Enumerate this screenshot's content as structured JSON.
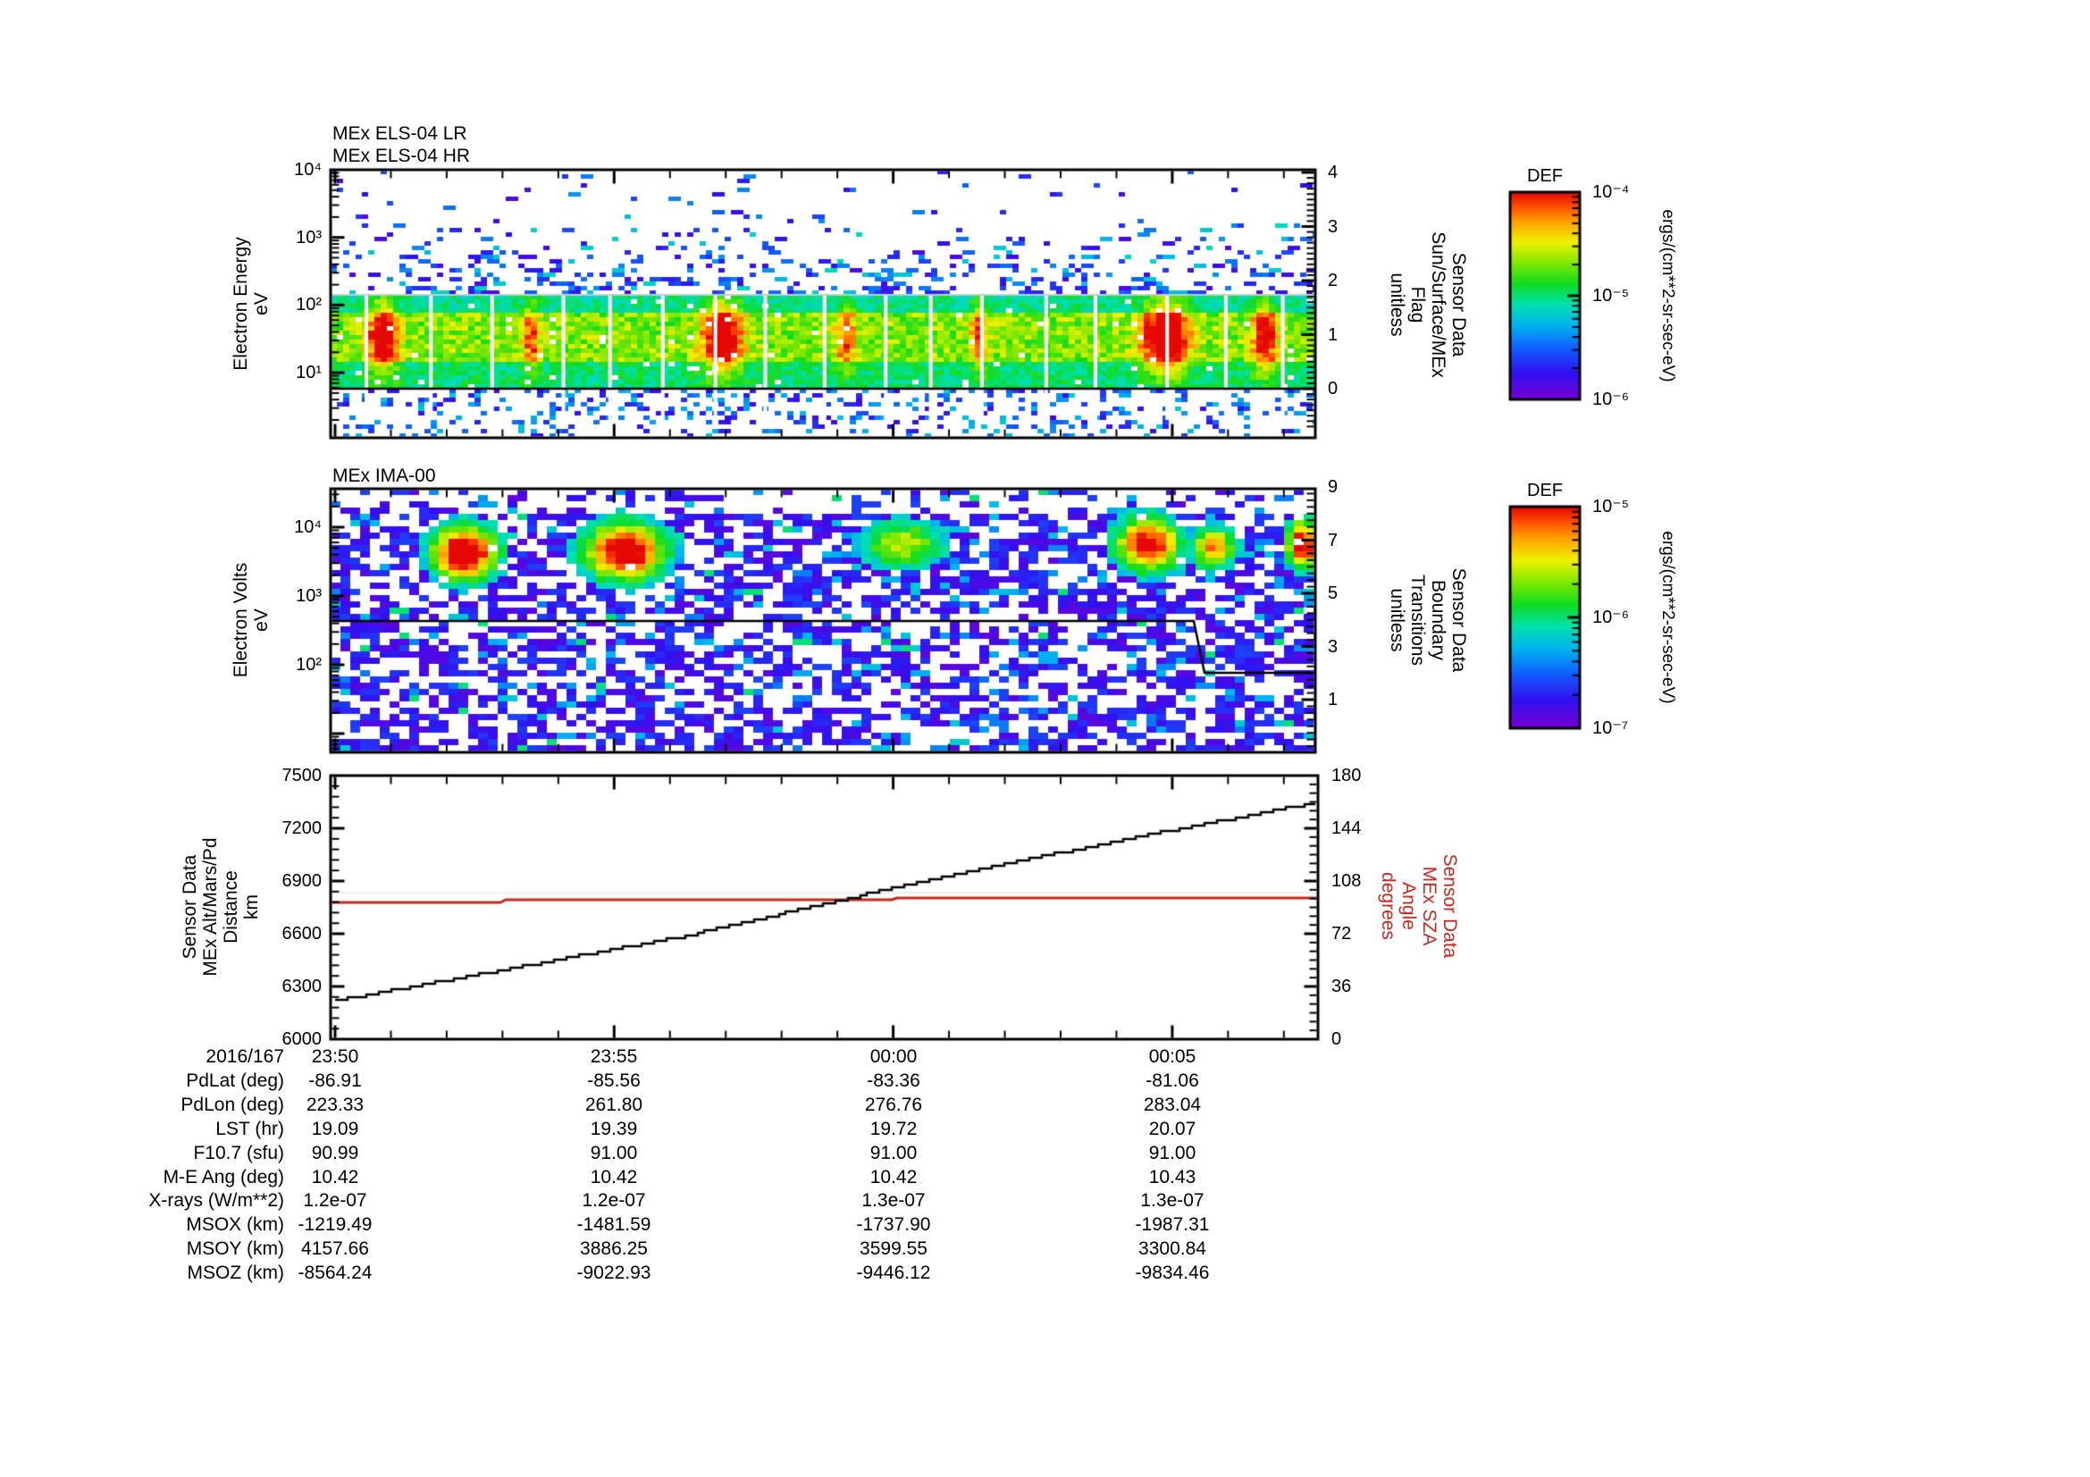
{
  "figure": {
    "background": "#ffffff",
    "accent_red": "#c4281e"
  },
  "panels": {
    "els": {
      "title_lr": "MEx ELS-04 LR",
      "title_hr": "MEx ELS-04 HR",
      "ylabel": "Electron Energy\neV",
      "yticks": [
        "10⁴",
        "10³",
        "10²",
        "10¹"
      ],
      "right_label": "Sensor Data\nSun/Surface/MEx\nFlag\nunitless",
      "right_ticks": [
        "4",
        "3",
        "2",
        "1",
        "0"
      ]
    },
    "ima": {
      "title": "MEx IMA-00",
      "ylabel": "Electron Volts\neV",
      "yticks": [
        "10⁴",
        "10³",
        "10²"
      ],
      "right_label": "Sensor Data\nBoundary\nTransitions\nunitless",
      "right_ticks": [
        "9",
        "7",
        "5",
        "3",
        "1"
      ]
    },
    "alt": {
      "ylabel": "Sensor Data\nMEx Alt/Mars/Pd\nDistance\nkm",
      "yticks": [
        "7500",
        "7200",
        "6900",
        "6600",
        "6300",
        "6000"
      ],
      "right_label": "Sensor Data\nMEx SZA\nAngle\ndegrees",
      "right_ticks": [
        "180",
        "144",
        "108",
        "72",
        "36",
        "0"
      ]
    }
  },
  "colorbars": [
    {
      "title": "DEF",
      "ticks": [
        "10⁻⁴",
        "10⁻⁵",
        "10⁻⁶"
      ],
      "unit": "ergs/(cm**2-sr-sec-eV)"
    },
    {
      "title": "DEF",
      "ticks": [
        "10⁻⁵",
        "10⁻⁶",
        "10⁻⁷"
      ],
      "unit": "ergs/(cm**2-sr-sec-eV)"
    }
  ],
  "table": {
    "date_label": "2016/167",
    "time_ticks": [
      "23:50",
      "23:55",
      "00:00",
      "00:05"
    ],
    "rows": [
      {
        "label": "PdLat (deg)",
        "values": [
          "-86.91",
          "-85.56",
          "-83.36",
          "-81.06"
        ]
      },
      {
        "label": "PdLon (deg)",
        "values": [
          "223.33",
          "261.80",
          "276.76",
          "283.04"
        ]
      },
      {
        "label": "LST (hr)",
        "values": [
          "19.09",
          "19.39",
          "19.72",
          "20.07"
        ]
      },
      {
        "label": "F10.7 (sfu)",
        "values": [
          "90.99",
          "91.00",
          "91.00",
          "91.00"
        ]
      },
      {
        "label": "M-E Ang (deg)",
        "values": [
          "10.42",
          "10.42",
          "10.42",
          "10.43"
        ]
      },
      {
        "label": "X-rays (W/m**2)",
        "values": [
          "1.2e-07",
          "1.2e-07",
          "1.3e-07",
          "1.3e-07"
        ]
      },
      {
        "label": "MSOX (km)",
        "values": [
          "-1219.49",
          "-1481.59",
          "-1737.90",
          "-1987.31"
        ]
      },
      {
        "label": "MSOY (km)",
        "values": [
          "4157.66",
          "3886.25",
          "3599.55",
          "3300.84"
        ]
      },
      {
        "label": "MSOZ (km)",
        "values": [
          "-8564.24",
          "-9022.93",
          "-9446.12",
          "-9834.46"
        ]
      }
    ]
  },
  "chart_data": [
    {
      "type": "heatmap",
      "title": "MEx ELS-04 LR / MEx ELS-04 HR",
      "ylabel": "Electron Energy (eV)",
      "yscale": "log",
      "ylim": [
        1,
        10000
      ],
      "x_ticks": [
        "23:50",
        "23:55",
        "00:00",
        "00:05"
      ],
      "right_axis": {
        "label": "Sensor Data Sun/Surface/MEx Flag (unitless)",
        "lim": [
          0,
          4
        ],
        "flag_line_value": 0
      },
      "colorbar": {
        "title": "DEF",
        "unit": "ergs/(cm**2-sr-sec-eV)",
        "min": "1e-6",
        "max": "1e-4"
      },
      "description": "Dense electron flux band (green-yellow, red bursts) between ~8 eV and ~150 eV across the whole interval; sparse blue/violet counts above up to 10^4 eV and below; periodic white vertical data gaps; black flag line at value 0.",
      "render": {
        "seed": 7,
        "band_top_local_y": 140,
        "band_bottom_local_y": 245,
        "hotspots_xfrac": [
          0.05,
          0.2,
          0.395,
          0.52,
          0.655,
          0.845,
          0.945
        ],
        "hotspots_amp": [
          0.5,
          0.32,
          0.55,
          0.3,
          0.3,
          0.6,
          0.45
        ]
      }
    },
    {
      "type": "heatmap",
      "title": "MEx IMA-00",
      "ylabel": "Electron Volts (eV)",
      "yscale": "log",
      "ylim": [
        10,
        30000
      ],
      "x_ticks": [
        "23:50",
        "23:55",
        "00:00",
        "00:05"
      ],
      "right_axis": {
        "label": "Sensor Data Boundary Transitions (unitless)",
        "lim": [
          0,
          9
        ],
        "line_segments": [
          {
            "value": 4,
            "x_from_frac": 0.0,
            "x_to_frac": 0.877
          },
          {
            "value": 2,
            "x_from_frac": 0.888,
            "x_to_frac": 1.0
          }
        ]
      },
      "colorbar": {
        "title": "DEF",
        "unit": "ergs/(cm**2-sr-sec-eV)",
        "min": "1e-7",
        "max": "1e-5"
      },
      "description": "Sparse violet/blue ion counts everywhere with bright green/yellow/red enhancements near 2x10^3 - 5x10^3 eV around 23:52, 23:55, 00:00, 00:04 and 00:07.",
      "render": {
        "seed": 13,
        "blobs_local": [
          [
            150,
            72,
            36,
            30,
            1.0
          ],
          [
            330,
            70,
            44,
            32,
            0.95
          ],
          [
            640,
            62,
            48,
            26,
            0.5
          ],
          [
            915,
            62,
            36,
            30,
            0.85
          ],
          [
            988,
            66,
            24,
            22,
            0.7
          ],
          [
            1088,
            62,
            17,
            26,
            0.9
          ]
        ]
      }
    },
    {
      "type": "line",
      "x_ticks": [
        "23:50",
        "23:55",
        "00:00",
        "00:05"
      ],
      "left_axis": {
        "label": "Sensor Data MEx Alt/Mars/Pd Distance (km)",
        "lim": [
          6000,
          7500
        ]
      },
      "right_axis": {
        "label": "Sensor Data MEx SZA Angle (degrees)",
        "lim": [
          0,
          180
        ]
      },
      "series": [
        {
          "name": "MEx Alt/Mars/Pd Distance",
          "axis": "left",
          "color": "#000000",
          "style": "staircase",
          "x": [
            "23:50",
            "23:56.2",
            "00:00.8",
            "00:04.5",
            "00:07.6"
          ],
          "values": [
            6219,
            6585,
            6920,
            7159,
            7347
          ]
        },
        {
          "name": "MEx SZA Angle",
          "axis": "right",
          "color": "#c4281e",
          "style": "step",
          "x": [
            "23:50",
            "23:53",
            "23:53.1",
            "00:00",
            "00:00.1",
            "00:07.6"
          ],
          "values": [
            93.4,
            93.4,
            95.2,
            95.2,
            96.4,
            96.4
          ]
        }
      ],
      "grid": false,
      "legend": "none"
    }
  ]
}
